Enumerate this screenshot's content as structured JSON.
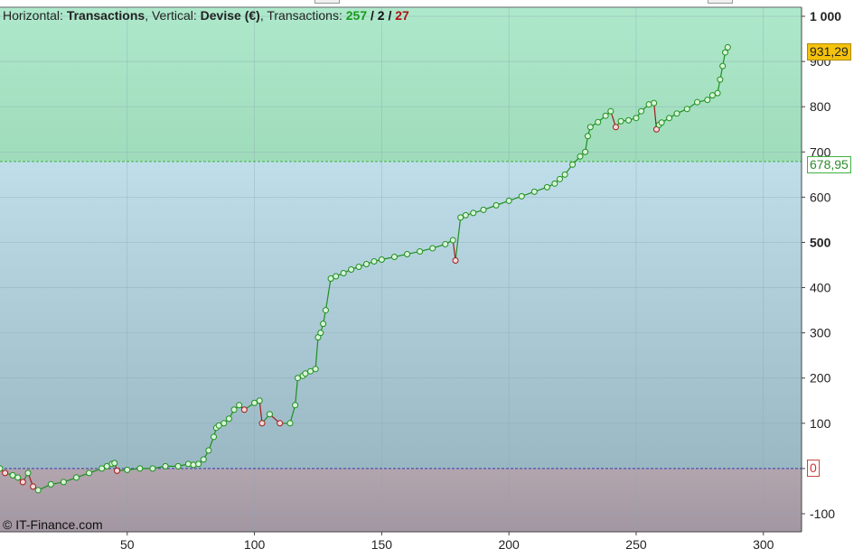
{
  "header": {
    "horizontal_label": "Horizontal: ",
    "horizontal_value": "Transactions",
    "vertical_label": ", Vertical: ",
    "vertical_value": "Devise (€)",
    "transactions_label": ", Transactions: ",
    "wins": "257",
    "sep1": " / ",
    "even": "2",
    "sep2": " / ",
    "losses": "27"
  },
  "copyright": "© IT-Finance.com",
  "badges": {
    "current_value": "931,29",
    "reference_value": "678,95",
    "zero_value": "0"
  },
  "colors": {
    "zone_top": "#a6e3c6",
    "zone_mid": "#a9c9d3",
    "zone_bottom": "#a89ea8",
    "equity_line": "#1f8f1f",
    "drawdown_line": "#a01c1c",
    "win_marker_fill": "#d9f5d9",
    "loss_marker_fill": "#f5d9d9",
    "reference_line": "#3db33d",
    "zero_line": "#3a3aaa",
    "badge_current_bg": "#f4c20d",
    "grid": "#9bb8c8"
  },
  "chart_data": {
    "type": "line",
    "xlabel": "",
    "ylabel": "",
    "xlim": [
      0,
      315
    ],
    "ylim": [
      -140,
      1020
    ],
    "x_ticks": [
      "50",
      "100",
      "150",
      "200",
      "250",
      "300"
    ],
    "x_tick_values": [
      50,
      100,
      150,
      200,
      250,
      300
    ],
    "y_ticks": [
      "1 000",
      "900",
      "800",
      "700",
      "600",
      "500",
      "400",
      "300",
      "200",
      "100",
      "0",
      "-100"
    ],
    "y_tick_values": [
      1000,
      900,
      800,
      700,
      600,
      500,
      400,
      300,
      200,
      100,
      0,
      -100
    ],
    "y_ticks_bold": [
      1000,
      500
    ],
    "reference_level": 678.95,
    "zero_level": 0,
    "current_level": 931.29,
    "x": [
      0,
      2,
      5,
      7,
      9,
      11,
      13,
      15,
      20,
      25,
      30,
      35,
      40,
      42,
      44,
      45,
      46,
      50,
      55,
      60,
      65,
      70,
      74,
      76,
      78,
      80,
      82,
      84,
      85,
      86,
      88,
      90,
      92,
      94,
      96,
      100,
      102,
      103,
      106,
      110,
      114,
      116,
      117,
      119,
      120,
      122,
      124,
      125,
      126,
      127,
      128,
      130,
      132,
      135,
      138,
      141,
      144,
      147,
      150,
      155,
      160,
      165,
      170,
      175,
      178,
      179,
      181,
      183,
      186,
      190,
      195,
      200,
      205,
      210,
      215,
      218,
      220,
      222,
      225,
      228,
      230,
      231,
      232,
      235,
      238,
      240,
      242,
      244,
      247,
      250,
      252,
      255,
      257,
      258,
      259,
      260,
      263,
      266,
      270,
      274,
      278,
      280,
      282,
      283,
      284,
      285,
      286,
      287
    ],
    "y": [
      0,
      -10,
      -15,
      -20,
      -30,
      -10,
      -40,
      -48,
      -35,
      -30,
      -20,
      -10,
      0,
      5,
      10,
      12,
      -5,
      -3,
      0,
      0,
      5,
      5,
      10,
      8,
      10,
      20,
      40,
      70,
      90,
      95,
      100,
      110,
      130,
      140,
      130,
      145,
      150,
      100,
      120,
      100,
      100,
      140,
      200,
      205,
      210,
      215,
      220,
      290,
      300,
      320,
      350,
      420,
      425,
      432,
      440,
      446,
      452,
      458,
      462,
      468,
      474,
      480,
      487,
      496,
      505,
      460,
      555,
      560,
      565,
      572,
      582,
      592,
      602,
      612,
      622,
      630,
      640,
      650,
      672,
      690,
      700,
      735,
      755,
      766,
      780,
      790,
      755,
      768,
      770,
      775,
      790,
      805,
      808,
      750,
      760,
      765,
      775,
      785,
      795,
      810,
      815,
      825,
      830,
      860,
      890,
      920,
      931.29,
      931.29
    ],
    "series": [
      {
        "name": "",
        "role": "equity"
      }
    ]
  }
}
